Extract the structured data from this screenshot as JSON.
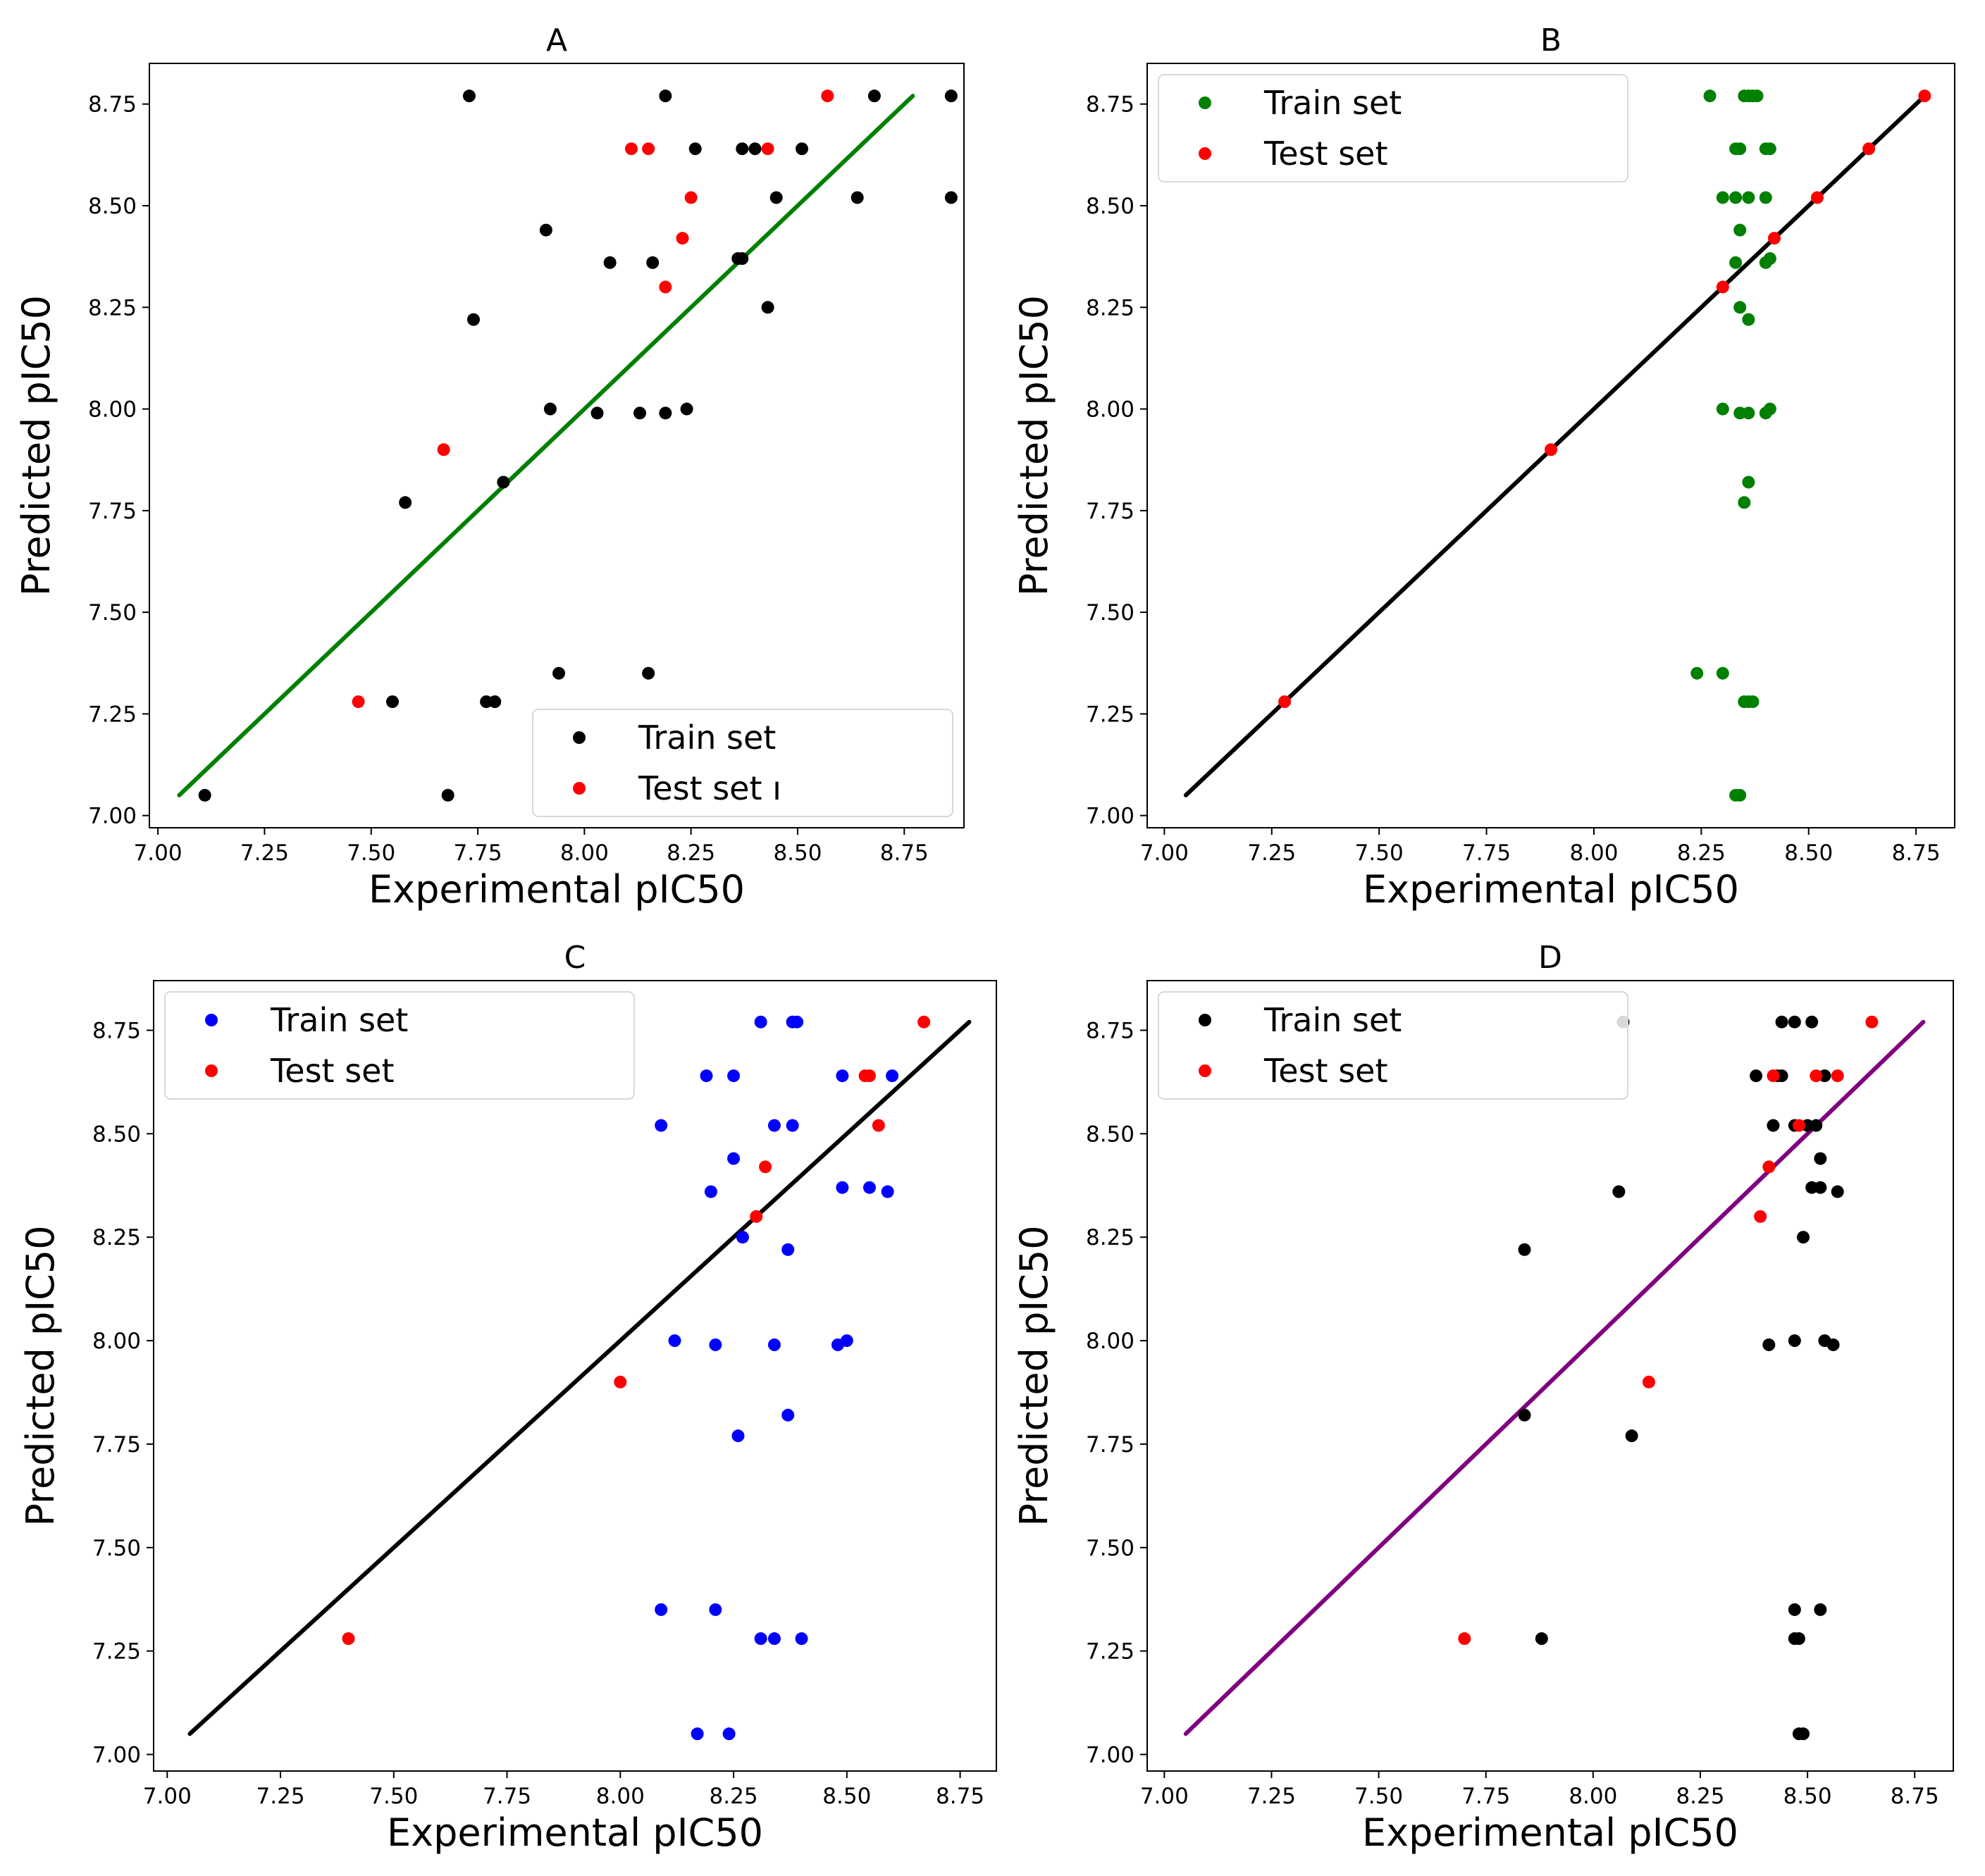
{
  "figure": {
    "series_names": [
      "Train set",
      "Test set"
    ],
    "colors": {
      "test": "#ff0000",
      "black": "#000000",
      "green": "#008000",
      "blue": "#0000ff",
      "purple": "#800080"
    }
  },
  "chart_data": [
    {
      "id": "A",
      "type": "scatter",
      "title": "A",
      "xlabel": "Experimental pIC50",
      "ylabel": "Predicted pIC50",
      "xlim": [
        6.98,
        8.89
      ],
      "ylim": [
        6.97,
        8.85
      ],
      "xticks": [
        "7.00",
        "7.25",
        "7.50",
        "7.75",
        "8.00",
        "8.25",
        "8.50",
        "8.75"
      ],
      "yticks": [
        "7.00",
        "7.25",
        "7.50",
        "7.75",
        "8.00",
        "8.25",
        "8.50",
        "8.75"
      ],
      "legend": {
        "position": "lower-right",
        "labels": [
          "Train set",
          "Test set ı"
        ]
      },
      "fit_line": {
        "color": "#008000",
        "x": [
          7.05,
          8.77
        ],
        "y": [
          7.05,
          8.77
        ]
      },
      "series": [
        {
          "name": "Train set",
          "color": "#000000",
          "points": [
            [
              7.11,
              7.05
            ],
            [
              7.68,
              7.05
            ],
            [
              7.55,
              7.28
            ],
            [
              7.77,
              7.28
            ],
            [
              7.79,
              7.28
            ],
            [
              7.94,
              7.35
            ],
            [
              8.15,
              7.35
            ],
            [
              7.58,
              7.77
            ],
            [
              7.81,
              7.82
            ],
            [
              7.92,
              8.0
            ],
            [
              8.03,
              7.99
            ],
            [
              8.13,
              7.99
            ],
            [
              8.19,
              7.99
            ],
            [
              8.24,
              8.0
            ],
            [
              7.74,
              8.22
            ],
            [
              8.43,
              8.25
            ],
            [
              8.36,
              8.37
            ],
            [
              8.37,
              8.37
            ],
            [
              8.06,
              8.36
            ],
            [
              8.16,
              8.36
            ],
            [
              7.91,
              8.44
            ],
            [
              8.45,
              8.52
            ],
            [
              8.64,
              8.52
            ],
            [
              8.86,
              8.52
            ],
            [
              8.26,
              8.64
            ],
            [
              8.37,
              8.64
            ],
            [
              8.4,
              8.64
            ],
            [
              8.51,
              8.64
            ],
            [
              7.73,
              8.77
            ],
            [
              8.19,
              8.77
            ],
            [
              8.68,
              8.77
            ],
            [
              8.86,
              8.77
            ]
          ]
        },
        {
          "name": "Test set",
          "color": "#ff0000",
          "points": [
            [
              7.47,
              7.28
            ],
            [
              7.67,
              7.9
            ],
            [
              8.19,
              8.3
            ],
            [
              8.23,
              8.42
            ],
            [
              8.25,
              8.52
            ],
            [
              8.11,
              8.64
            ],
            [
              8.15,
              8.64
            ],
            [
              8.43,
              8.64
            ],
            [
              8.57,
              8.77
            ]
          ]
        }
      ]
    },
    {
      "id": "B",
      "type": "scatter",
      "title": "B",
      "xlabel": "Experimental pIC50",
      "ylabel": "Predicted pIC50",
      "xlim": [
        6.96,
        8.84
      ],
      "ylim": [
        6.97,
        8.85
      ],
      "xticks": [
        "7.00",
        "7.25",
        "7.50",
        "7.75",
        "8.00",
        "8.25",
        "8.50",
        "8.75"
      ],
      "yticks": [
        "7.00",
        "7.25",
        "7.50",
        "7.75",
        "8.00",
        "8.25",
        "8.50",
        "8.75"
      ],
      "legend": {
        "position": "upper-left",
        "labels": [
          "Train set",
          "Test set"
        ]
      },
      "fit_line": {
        "color": "#000000",
        "x": [
          7.05,
          8.77
        ],
        "y": [
          7.05,
          8.77
        ]
      },
      "series": [
        {
          "name": "Train set",
          "color": "#008000",
          "points": [
            [
              8.33,
              7.05
            ],
            [
              8.34,
              7.05
            ],
            [
              8.35,
              7.28
            ],
            [
              8.36,
              7.28
            ],
            [
              8.37,
              7.28
            ],
            [
              8.24,
              7.35
            ],
            [
              8.3,
              7.35
            ],
            [
              8.35,
              7.77
            ],
            [
              8.36,
              7.82
            ],
            [
              8.3,
              8.0
            ],
            [
              8.34,
              7.99
            ],
            [
              8.36,
              7.99
            ],
            [
              8.4,
              7.99
            ],
            [
              8.41,
              8.0
            ],
            [
              8.36,
              8.22
            ],
            [
              8.34,
              8.25
            ],
            [
              8.4,
              8.36
            ],
            [
              8.41,
              8.37
            ],
            [
              8.33,
              8.36
            ],
            [
              8.34,
              8.44
            ],
            [
              8.3,
              8.52
            ],
            [
              8.33,
              8.52
            ],
            [
              8.36,
              8.52
            ],
            [
              8.4,
              8.52
            ],
            [
              8.33,
              8.64
            ],
            [
              8.34,
              8.64
            ],
            [
              8.4,
              8.64
            ],
            [
              8.41,
              8.64
            ],
            [
              8.27,
              8.77
            ],
            [
              8.35,
              8.77
            ],
            [
              8.36,
              8.77
            ],
            [
              8.37,
              8.77
            ],
            [
              8.38,
              8.77
            ]
          ]
        },
        {
          "name": "Test set",
          "color": "#ff0000",
          "points": [
            [
              7.28,
              7.28
            ],
            [
              7.9,
              7.9
            ],
            [
              8.3,
              8.3
            ],
            [
              8.42,
              8.42
            ],
            [
              8.52,
              8.52
            ],
            [
              8.64,
              8.64
            ],
            [
              8.77,
              8.77
            ]
          ]
        }
      ]
    },
    {
      "id": "C",
      "type": "scatter",
      "title": "C",
      "xlabel": "Experimental pIC50",
      "ylabel": "Predicted pIC50",
      "xlim": [
        6.97,
        8.83
      ],
      "ylim": [
        6.96,
        8.87
      ],
      "xticks": [
        "7.00",
        "7.25",
        "7.50",
        "7.75",
        "8.00",
        "8.25",
        "8.50",
        "8.75"
      ],
      "yticks": [
        "7.00",
        "7.25",
        "7.50",
        "7.75",
        "8.00",
        "8.25",
        "8.50",
        "8.75"
      ],
      "legend": {
        "position": "upper-left",
        "labels": [
          "Train set",
          "Test set"
        ]
      },
      "fit_line": {
        "color": "#000000",
        "x": [
          7.05,
          8.77
        ],
        "y": [
          7.05,
          8.77
        ]
      },
      "series": [
        {
          "name": "Train set",
          "color": "#0000ff",
          "points": [
            [
              8.17,
              7.05
            ],
            [
              8.24,
              7.05
            ],
            [
              8.31,
              7.28
            ],
            [
              8.34,
              7.28
            ],
            [
              8.4,
              7.28
            ],
            [
              8.09,
              7.35
            ],
            [
              8.21,
              7.35
            ],
            [
              8.26,
              7.77
            ],
            [
              8.37,
              7.82
            ],
            [
              8.12,
              8.0
            ],
            [
              8.21,
              7.99
            ],
            [
              8.34,
              7.99
            ],
            [
              8.48,
              7.99
            ],
            [
              8.5,
              8.0
            ],
            [
              8.37,
              8.22
            ],
            [
              8.27,
              8.25
            ],
            [
              8.49,
              8.37
            ],
            [
              8.55,
              8.37
            ],
            [
              8.59,
              8.36
            ],
            [
              8.2,
              8.36
            ],
            [
              8.25,
              8.44
            ],
            [
              8.09,
              8.52
            ],
            [
              8.34,
              8.52
            ],
            [
              8.38,
              8.52
            ],
            [
              8.19,
              8.64
            ],
            [
              8.25,
              8.64
            ],
            [
              8.49,
              8.64
            ],
            [
              8.6,
              8.64
            ],
            [
              8.31,
              8.77
            ],
            [
              8.38,
              8.77
            ],
            [
              8.39,
              8.77
            ]
          ]
        },
        {
          "name": "Test set",
          "color": "#ff0000",
          "points": [
            [
              7.4,
              7.28
            ],
            [
              8.0,
              7.9
            ],
            [
              8.3,
              8.3
            ],
            [
              8.32,
              8.42
            ],
            [
              8.57,
              8.52
            ],
            [
              8.54,
              8.64
            ],
            [
              8.55,
              8.64
            ],
            [
              8.67,
              8.77
            ]
          ]
        }
      ]
    },
    {
      "id": "D",
      "type": "scatter",
      "title": "D",
      "xlabel": "Experimental pIC50",
      "ylabel": "Predicted pIC50",
      "xlim": [
        6.96,
        8.84
      ],
      "ylim": [
        6.96,
        8.87
      ],
      "xticks": [
        "7.00",
        "7.25",
        "7.50",
        "7.75",
        "8.00",
        "8.25",
        "8.50",
        "8.75"
      ],
      "yticks": [
        "7.00",
        "7.25",
        "7.50",
        "7.75",
        "8.00",
        "8.25",
        "8.50",
        "8.75"
      ],
      "legend": {
        "position": "upper-left",
        "labels": [
          "Train set",
          "Test set"
        ]
      },
      "fit_line": {
        "color": "#800080",
        "x": [
          7.05,
          8.77
        ],
        "y": [
          7.05,
          8.77
        ]
      },
      "series": [
        {
          "name": "Train set",
          "color": "#000000",
          "points": [
            [
              8.48,
              7.05
            ],
            [
              8.49,
              7.05
            ],
            [
              7.88,
              7.28
            ],
            [
              8.47,
              7.28
            ],
            [
              8.48,
              7.28
            ],
            [
              8.47,
              7.35
            ],
            [
              8.53,
              7.35
            ],
            [
              8.09,
              7.77
            ],
            [
              7.84,
              7.82
            ],
            [
              8.41,
              7.99
            ],
            [
              8.47,
              8.0
            ],
            [
              8.54,
              8.0
            ],
            [
              8.56,
              7.99
            ],
            [
              7.84,
              8.22
            ],
            [
              8.49,
              8.25
            ],
            [
              8.51,
              8.37
            ],
            [
              8.53,
              8.37
            ],
            [
              8.57,
              8.36
            ],
            [
              8.06,
              8.36
            ],
            [
              8.53,
              8.44
            ],
            [
              8.42,
              8.52
            ],
            [
              8.47,
              8.52
            ],
            [
              8.5,
              8.52
            ],
            [
              8.52,
              8.52
            ],
            [
              8.38,
              8.64
            ],
            [
              8.43,
              8.64
            ],
            [
              8.44,
              8.64
            ],
            [
              8.54,
              8.64
            ],
            [
              8.07,
              8.77
            ],
            [
              8.44,
              8.77
            ],
            [
              8.47,
              8.77
            ],
            [
              8.51,
              8.77
            ]
          ]
        },
        {
          "name": "Test set",
          "color": "#ff0000",
          "points": [
            [
              7.7,
              7.28
            ],
            [
              8.13,
              7.9
            ],
            [
              8.39,
              8.3
            ],
            [
              8.41,
              8.42
            ],
            [
              8.48,
              8.52
            ],
            [
              8.42,
              8.64
            ],
            [
              8.52,
              8.64
            ],
            [
              8.57,
              8.64
            ],
            [
              8.65,
              8.77
            ]
          ]
        }
      ]
    }
  ]
}
